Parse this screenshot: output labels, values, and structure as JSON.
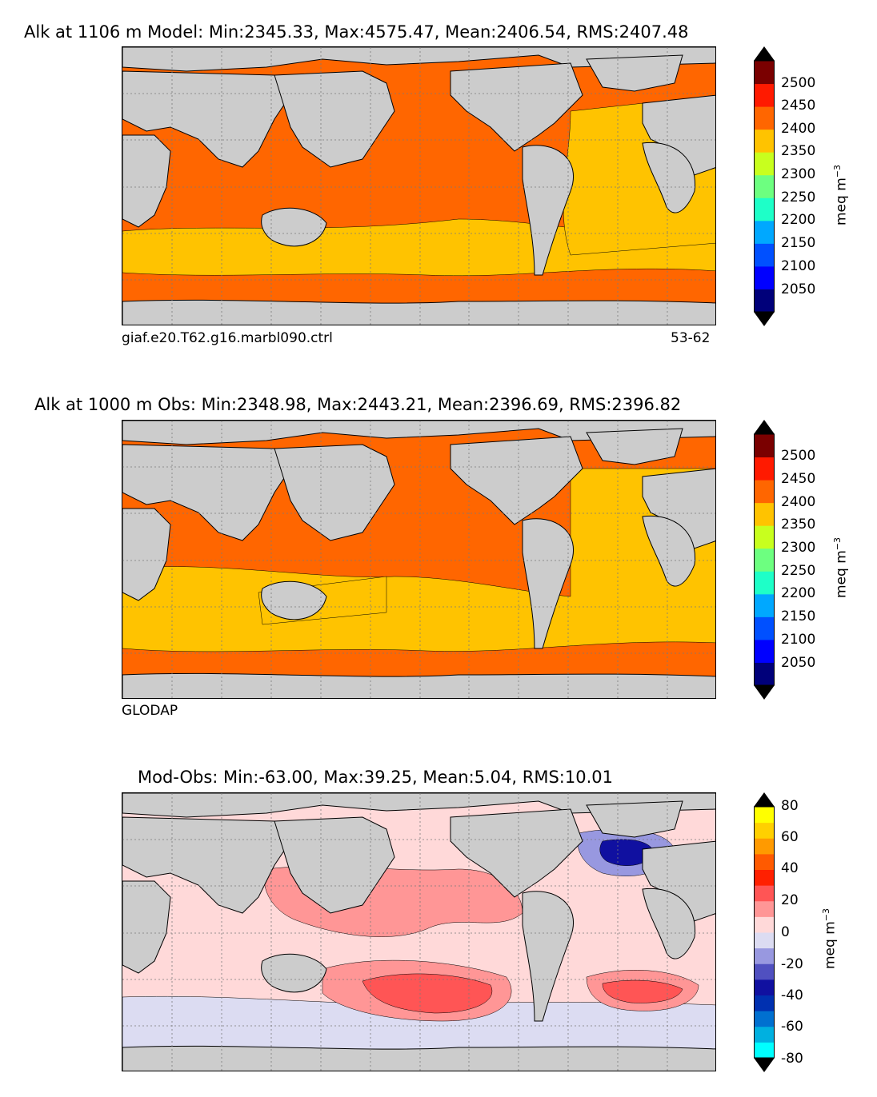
{
  "panels": [
    {
      "title": "Alk at 1106 m Model: Min:2345.33, Max:4575.47, Mean:2406.54, RMS:2407.48",
      "footer_left": "giaf.e20.T62.g16.marbl090.ctrl",
      "footer_right": "53-62",
      "ocean_fill": "#ff6600",
      "south_fill": "#ffc300",
      "colorbar": {
        "ticks": [
          "2500",
          "2450",
          "2400",
          "2350",
          "2300",
          "2250",
          "2200",
          "2150",
          "2100",
          "2050"
        ],
        "unit": "meq m",
        "unit_sup": "−3",
        "colors": [
          "#00007a",
          "#0000ff",
          "#0050ff",
          "#00a8ff",
          "#1effc8",
          "#6dff80",
          "#c8ff1e",
          "#ffc300",
          "#ff6600",
          "#ff1a00",
          "#7a0000"
        ]
      }
    },
    {
      "title": "Alk at 1000 m Obs: Min:2348.98, Max:2443.21, Mean:2396.69, RMS:2396.82",
      "footer_left": "GLODAP",
      "footer_right": "",
      "ocean_fill": "#ff6600",
      "south_fill": "#ffc300",
      "colorbar": {
        "ticks": [
          "2500",
          "2450",
          "2400",
          "2350",
          "2300",
          "2250",
          "2200",
          "2150",
          "2100",
          "2050"
        ],
        "unit": "meq m",
        "unit_sup": "−3",
        "colors": [
          "#00007a",
          "#0000ff",
          "#0050ff",
          "#00a8ff",
          "#1effc8",
          "#6dff80",
          "#c8ff1e",
          "#ffc300",
          "#ff6600",
          "#ff1a00",
          "#7a0000"
        ]
      }
    },
    {
      "title": "Mod-Obs: Min:-63.00, Max:39.25, Mean:5.04, RMS:10.01",
      "footer_left": "",
      "footer_right": "",
      "ocean_fill": "#ffd9d9",
      "south_fill": "#dcdcf2",
      "colorbar": {
        "ticks": [
          "80",
          "60",
          "40",
          "20",
          "0",
          "-20",
          "-40",
          "-60",
          "-80"
        ],
        "unit": "meq m",
        "unit_sup": "−3",
        "colors": [
          "#00ffff",
          "#00b0e0",
          "#0070d0",
          "#0030b0",
          "#1010a0",
          "#5050c0",
          "#9898e0",
          "#dcdcf2",
          "#ffd9d9",
          "#ff9696",
          "#ff5555",
          "#ff2000",
          "#ff5a00",
          "#ff9a00",
          "#ffd000",
          "#ffff00"
        ]
      }
    }
  ],
  "colors": {
    "land": "#cccccc",
    "grid": "#7a7a7a"
  }
}
